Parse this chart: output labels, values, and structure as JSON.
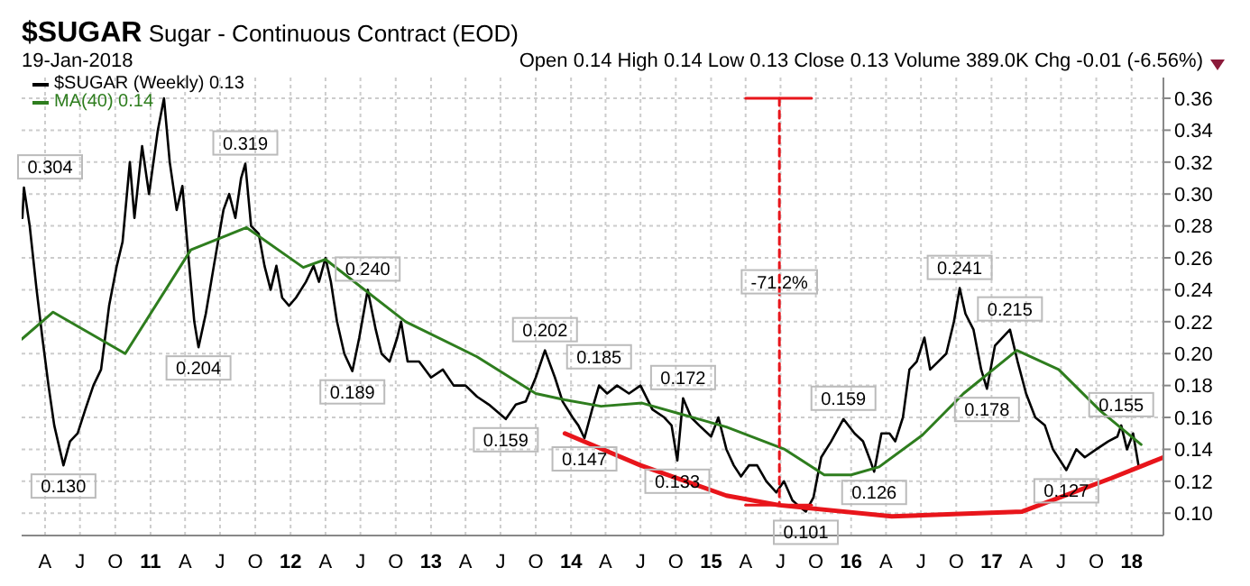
{
  "chart_data": {
    "type": "line",
    "title": "$SUGAR Sugar - Continuous Contract (EOD)",
    "subtitle": "19-Jan-2018",
    "xlim": [
      "2010-01-30",
      "2018-03-25"
    ],
    "xticks": [
      {
        "value": "2010-04-01",
        "label": "A"
      },
      {
        "value": "2010-07-01",
        "label": "J"
      },
      {
        "value": "2010-10-01",
        "label": "O"
      },
      {
        "value": "2011-01-01",
        "label": "11"
      },
      {
        "value": "2011-04-01",
        "label": "A"
      },
      {
        "value": "2011-07-01",
        "label": "J"
      },
      {
        "value": "2011-10-01",
        "label": "O"
      },
      {
        "value": "2012-01-01",
        "label": "12"
      },
      {
        "value": "2012-04-01",
        "label": "A"
      },
      {
        "value": "2012-07-01",
        "label": "J"
      },
      {
        "value": "2012-10-01",
        "label": "O"
      },
      {
        "value": "2013-01-01",
        "label": "13"
      },
      {
        "value": "2013-04-01",
        "label": "A"
      },
      {
        "value": "2013-07-01",
        "label": "J"
      },
      {
        "value": "2013-10-01",
        "label": "O"
      },
      {
        "value": "2014-01-01",
        "label": "14"
      },
      {
        "value": "2014-04-01",
        "label": "A"
      },
      {
        "value": "2014-07-01",
        "label": "J"
      },
      {
        "value": "2014-10-01",
        "label": "O"
      },
      {
        "value": "2015-01-01",
        "label": "15"
      },
      {
        "value": "2015-04-01",
        "label": "A"
      },
      {
        "value": "2015-07-01",
        "label": "J"
      },
      {
        "value": "2015-10-01",
        "label": "O"
      },
      {
        "value": "2016-01-01",
        "label": "16"
      },
      {
        "value": "2016-04-01",
        "label": "A"
      },
      {
        "value": "2016-07-01",
        "label": "J"
      },
      {
        "value": "2016-10-01",
        "label": "O"
      },
      {
        "value": "2017-01-01",
        "label": "17"
      },
      {
        "value": "2017-04-01",
        "label": "A"
      },
      {
        "value": "2017-07-01",
        "label": "J"
      },
      {
        "value": "2017-10-01",
        "label": "O"
      },
      {
        "value": "2018-01-01",
        "label": "18"
      }
    ],
    "ylim": [
      0.086,
      0.373
    ],
    "yticks": [
      {
        "value": 0.1,
        "label": "0.10"
      },
      {
        "value": 0.12,
        "label": "0.12"
      },
      {
        "value": 0.14,
        "label": "0.14"
      },
      {
        "value": 0.16,
        "label": "0.16"
      },
      {
        "value": 0.18,
        "label": "0.18"
      },
      {
        "value": 0.2,
        "label": "0.20"
      },
      {
        "value": 0.22,
        "label": "0.22"
      },
      {
        "value": 0.24,
        "label": "0.24"
      },
      {
        "value": 0.26,
        "label": "0.26"
      },
      {
        "value": 0.28,
        "label": "0.28"
      },
      {
        "value": 0.3,
        "label": "0.30"
      },
      {
        "value": 0.32,
        "label": "0.32"
      },
      {
        "value": 0.34,
        "label": "0.34"
      },
      {
        "value": 0.36,
        "label": "0.36"
      }
    ],
    "grid": true,
    "legend": "top left",
    "marker": "none",
    "series": [
      {
        "name": "$SUGAR (Weekly) 0.13",
        "color": "#000000",
        "x": [
          "2010-02-01",
          "2010-02-05",
          "2010-02-20",
          "2010-03-10",
          "2010-03-25",
          "2010-04-10",
          "2010-04-25",
          "2010-05-19",
          "2010-06-05",
          "2010-06-25",
          "2010-07-15",
          "2010-08-05",
          "2010-08-25",
          "2010-09-15",
          "2010-10-05",
          "2010-10-20",
          "2010-11-08",
          "2010-11-20",
          "2010-12-10",
          "2010-12-28",
          "2011-01-20",
          "2011-02-05",
          "2011-02-20",
          "2011-03-10",
          "2011-03-25",
          "2011-04-10",
          "2011-04-25",
          "2011-05-06",
          "2011-05-25",
          "2011-06-15",
          "2011-07-10",
          "2011-07-25",
          "2011-08-10",
          "2011-08-25",
          "2011-09-05",
          "2011-09-20",
          "2011-10-10",
          "2011-10-25",
          "2011-11-10",
          "2011-11-25",
          "2011-12-10",
          "2011-12-28",
          "2012-01-15",
          "2012-02-10",
          "2012-03-01",
          "2012-03-15",
          "2012-04-01",
          "2012-04-15",
          "2012-05-01",
          "2012-05-20",
          "2012-06-10",
          "2012-06-28",
          "2012-07-20",
          "2012-08-10",
          "2012-08-25",
          "2012-09-15",
          "2012-10-05",
          "2012-10-15",
          "2012-11-01",
          "2012-12-01",
          "2013-01-01",
          "2013-02-01",
          "2013-03-01",
          "2013-04-01",
          "2013-05-01",
          "2013-06-01",
          "2013-07-15",
          "2013-08-10",
          "2013-09-05",
          "2013-10-01",
          "2013-10-25",
          "2013-11-20",
          "2013-12-10",
          "2014-01-05",
          "2014-01-20",
          "2014-02-05",
          "2014-02-25",
          "2014-03-15",
          "2014-04-05",
          "2014-05-01",
          "2014-06-01",
          "2014-07-01",
          "2014-08-01",
          "2014-09-01",
          "2014-09-20",
          "2014-10-05",
          "2014-10-20",
          "2014-11-10",
          "2014-12-01",
          "2015-01-01",
          "2015-01-20",
          "2015-02-10",
          "2015-03-01",
          "2015-03-20",
          "2015-04-10",
          "2015-05-01",
          "2015-05-25",
          "2015-06-20",
          "2015-07-10",
          "2015-08-01",
          "2015-08-20",
          "2015-09-05",
          "2015-09-25",
          "2015-10-15",
          "2015-11-10",
          "2015-12-12",
          "2016-01-10",
          "2016-02-01",
          "2016-02-20",
          "2016-03-01",
          "2016-03-20",
          "2016-04-10",
          "2016-04-25",
          "2016-05-15",
          "2016-06-01",
          "2016-06-20",
          "2016-07-10",
          "2016-07-25",
          "2016-08-15",
          "2016-09-05",
          "2016-09-25",
          "2016-10-10",
          "2016-10-25",
          "2016-11-15",
          "2016-12-05",
          "2016-12-20",
          "2017-01-10",
          "2017-02-18",
          "2017-03-10",
          "2017-04-01",
          "2017-04-25",
          "2017-05-20",
          "2017-06-10",
          "2017-07-15",
          "2017-08-10",
          "2017-09-01",
          "2017-10-01",
          "2017-11-01",
          "2017-11-25",
          "2017-12-05",
          "2017-12-20",
          "2018-01-05",
          "2018-01-19"
        ],
        "values": [
          0.285,
          0.304,
          0.28,
          0.24,
          0.21,
          0.18,
          0.155,
          0.13,
          0.145,
          0.15,
          0.165,
          0.18,
          0.19,
          0.23,
          0.255,
          0.27,
          0.32,
          0.285,
          0.33,
          0.3,
          0.34,
          0.36,
          0.32,
          0.29,
          0.305,
          0.26,
          0.22,
          0.204,
          0.225,
          0.255,
          0.29,
          0.3,
          0.285,
          0.31,
          0.319,
          0.28,
          0.275,
          0.255,
          0.24,
          0.255,
          0.235,
          0.23,
          0.235,
          0.245,
          0.255,
          0.245,
          0.26,
          0.245,
          0.22,
          0.2,
          0.189,
          0.21,
          0.24,
          0.215,
          0.2,
          0.195,
          0.21,
          0.22,
          0.195,
          0.195,
          0.185,
          0.19,
          0.18,
          0.18,
          0.173,
          0.168,
          0.159,
          0.168,
          0.17,
          0.185,
          0.202,
          0.185,
          0.17,
          0.16,
          0.155,
          0.147,
          0.165,
          0.18,
          0.175,
          0.18,
          0.175,
          0.18,
          0.165,
          0.16,
          0.155,
          0.133,
          0.172,
          0.16,
          0.155,
          0.148,
          0.16,
          0.14,
          0.13,
          0.123,
          0.13,
          0.13,
          0.12,
          0.113,
          0.12,
          0.108,
          0.104,
          0.101,
          0.11,
          0.135,
          0.145,
          0.159,
          0.15,
          0.145,
          0.133,
          0.126,
          0.15,
          0.15,
          0.145,
          0.16,
          0.19,
          0.195,
          0.21,
          0.19,
          0.195,
          0.2,
          0.22,
          0.241,
          0.225,
          0.215,
          0.19,
          0.178,
          0.205,
          0.215,
          0.195,
          0.175,
          0.16,
          0.155,
          0.14,
          0.127,
          0.14,
          0.135,
          0.14,
          0.145,
          0.148,
          0.155,
          0.14,
          0.15,
          0.13
        ]
      },
      {
        "name": "MA(40) 0.14",
        "color": "#2e7d1e",
        "x": [
          "2010-01-30",
          "2010-04-22",
          "2010-10-27",
          "2011-04-16",
          "2011-09-08",
          "2012-02-03",
          "2012-04-01",
          "2012-10-27",
          "2013-05-01",
          "2013-10-01",
          "2013-12-16",
          "2014-03-20",
          "2014-07-05",
          "2015-02-10",
          "2015-07-12",
          "2015-10-23",
          "2016-01-01",
          "2016-03-14",
          "2016-07-05",
          "2016-10-20",
          "2017-03-08",
          "2017-06-25",
          "2017-10-12",
          "2018-01-26"
        ],
        "values": [
          0.209,
          0.226,
          0.2,
          0.265,
          0.279,
          0.254,
          0.259,
          0.22,
          0.198,
          0.175,
          0.171,
          0.167,
          0.169,
          0.154,
          0.14,
          0.124,
          0.124,
          0.129,
          0.149,
          0.175,
          0.202,
          0.19,
          0.164,
          0.143
        ]
      },
      {
        "color": "#e8151b",
        "x": [
          "2013-12-16",
          "2014-07-01",
          "2015-02-10",
          "2015-06-28",
          "2016-04-16",
          "2017-03-22",
          "2017-11-10",
          "2018-03-25"
        ],
        "values": [
          0.15,
          0.13,
          0.111,
          0.105,
          0.098,
          0.101,
          0.122,
          0.135
        ]
      },
      {
        "color": "#e8151b",
        "line_style": "dashed",
        "x": [
          "2015-06-28",
          "2015-06-28"
        ],
        "values": [
          0.36,
          0.105
        ]
      },
      {
        "color": "#e8151b",
        "x": [
          "2015-04-01",
          "2015-09-20"
        ],
        "values": [
          0.36,
          0.36
        ]
      },
      {
        "color": "#e8151b",
        "x": [
          "2015-04-01",
          "2015-09-20"
        ],
        "values": [
          0.105,
          0.105
        ]
      }
    ],
    "annotations": [
      "Open 0.14 High 0.14 Low 0.13 Close 0.13 Volume 389.0K Chg -0.01 (-6.56%)",
      {
        "text": "0.304",
        "x": "2010-02-05",
        "y": 0.304
      },
      {
        "text": "0.130",
        "x": "2010-05-19",
        "y": 0.13
      },
      {
        "text": "0.319",
        "x": "2011-09-05",
        "y": 0.319
      },
      {
        "text": "0.204",
        "x": "2011-05-06",
        "y": 0.204
      },
      {
        "text": "0.240",
        "x": "2012-07-20",
        "y": 0.24
      },
      {
        "text": "0.189",
        "x": "2012-06-10",
        "y": 0.189
      },
      {
        "text": "0.202",
        "x": "2013-10-25",
        "y": 0.202
      },
      {
        "text": "0.159",
        "x": "2013-07-15",
        "y": 0.159
      },
      {
        "text": "0.185",
        "x": "2014-03-15",
        "y": 0.185
      },
      {
        "text": "0.147",
        "x": "2014-02-05",
        "y": 0.147
      },
      {
        "text": "0.172",
        "x": "2014-10-20",
        "y": 0.172
      },
      {
        "text": "0.133",
        "x": "2014-10-05",
        "y": 0.133
      },
      {
        "text": "0.101",
        "x": "2015-09-05",
        "y": 0.101
      },
      {
        "text": "0.159",
        "x": "2015-12-12",
        "y": 0.159
      },
      {
        "text": "0.126",
        "x": "2016-03-01",
        "y": 0.126
      },
      {
        "text": "0.241",
        "x": "2016-10-10",
        "y": 0.241
      },
      {
        "text": "0.215",
        "x": "2017-02-18",
        "y": 0.215
      },
      {
        "text": "0.178",
        "x": "2016-12-20",
        "y": 0.178
      },
      {
        "text": "0.127",
        "x": "2017-07-15",
        "y": 0.127
      },
      {
        "text": "0.155",
        "x": "2017-12-05",
        "y": 0.155
      },
      {
        "text": "-71.2%",
        "x": "2015-06-28",
        "y": 0.232
      }
    ]
  }
}
